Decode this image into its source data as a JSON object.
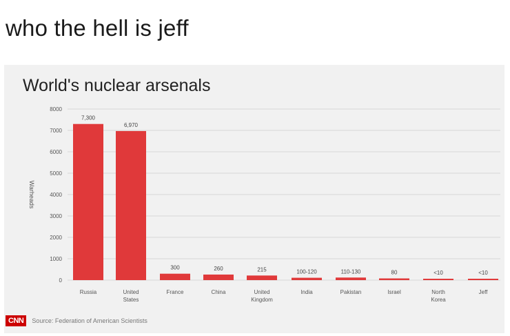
{
  "post": {
    "caption": "who the hell is jeff"
  },
  "footer": {
    "logo_text": "CNN",
    "source": "Source: Federation of American Scientists"
  },
  "colors": {
    "bar": "#e0393a",
    "background": "#f1f1f1",
    "grid": "#d6d6d6"
  },
  "chart_data": {
    "type": "bar",
    "title": "World's nuclear arsenals",
    "ylabel": "Warheads",
    "xlabel": "",
    "ylim": [
      0,
      8000
    ],
    "yticks": [
      0,
      1000,
      2000,
      3000,
      4000,
      5000,
      6000,
      7000,
      8000
    ],
    "grid": true,
    "categories": [
      [
        "Russia"
      ],
      [
        "United",
        "States"
      ],
      [
        "France"
      ],
      [
        "China"
      ],
      [
        "United",
        "Kingdom"
      ],
      [
        "India"
      ],
      [
        "Pakistan"
      ],
      [
        "Israel"
      ],
      [
        "North",
        "Korea"
      ],
      [
        "Jeff"
      ]
    ],
    "values": [
      7300,
      6970,
      300,
      260,
      215,
      110,
      120,
      80,
      10,
      10
    ],
    "data_labels": [
      "7,300",
      "6,970",
      "300",
      "260",
      "215",
      "100-120",
      "110-130",
      "80",
      "<10",
      "<10"
    ]
  }
}
